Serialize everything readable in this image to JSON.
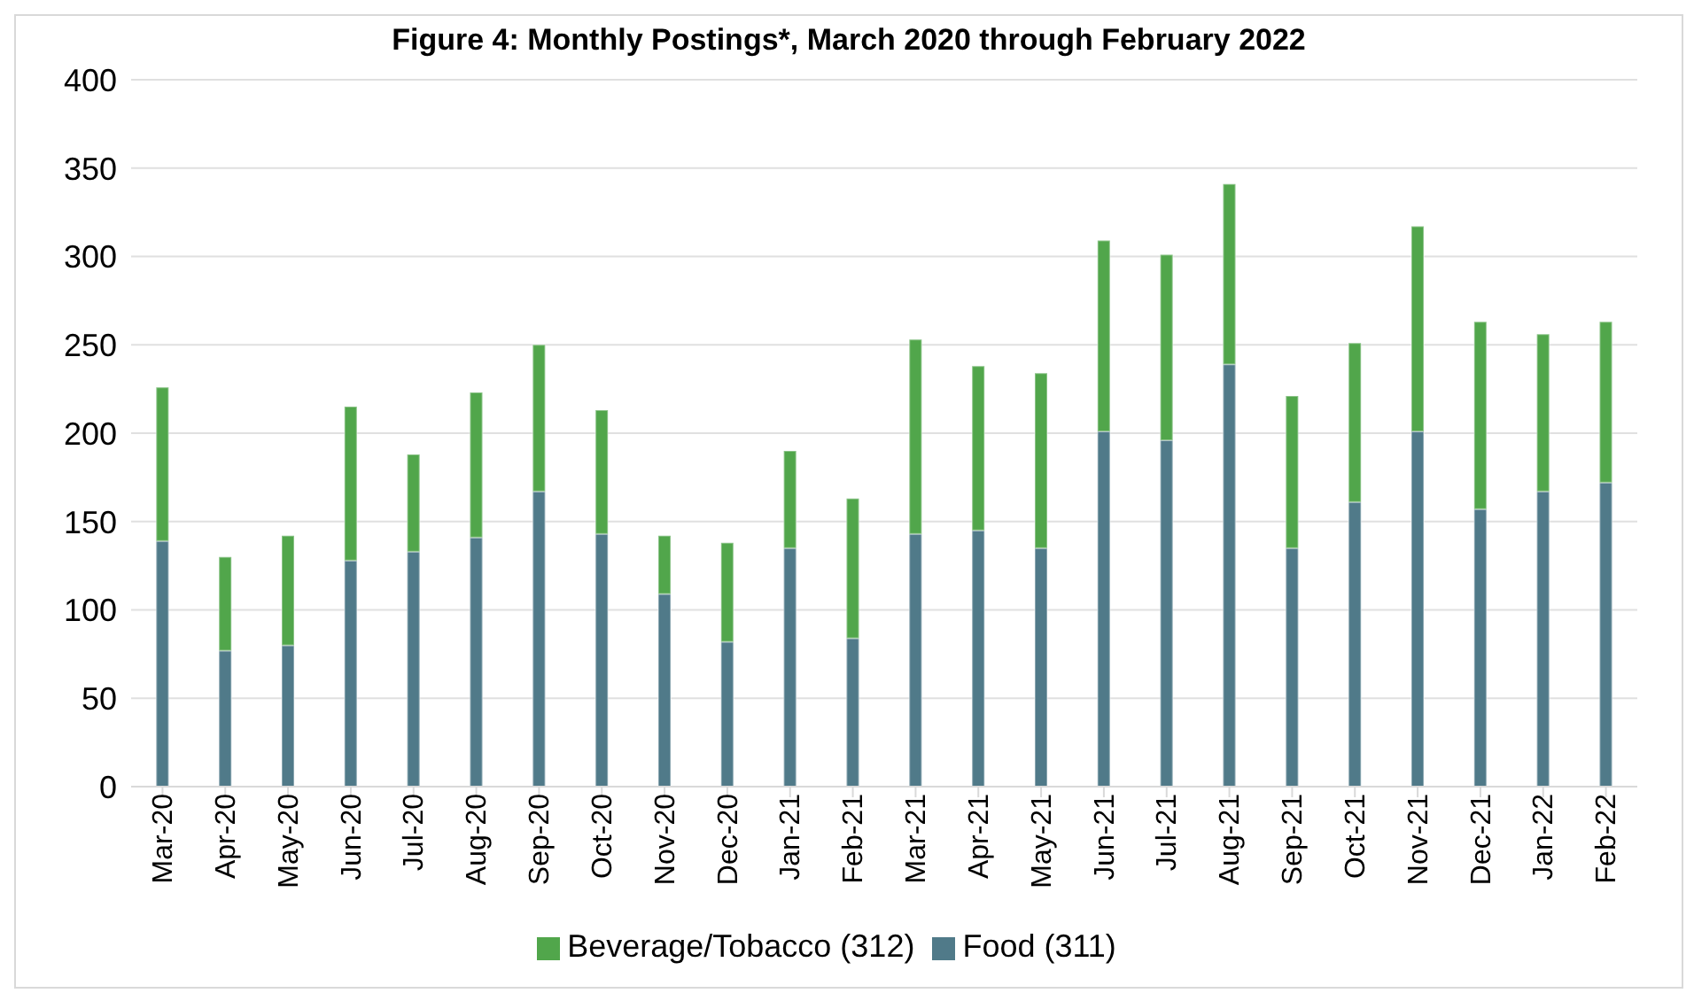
{
  "chart_data": {
    "type": "bar",
    "title": "Figure 4: Monthly Postings*, March 2020 through February 2022",
    "categories": [
      "Mar-20",
      "Apr-20",
      "May-20",
      "Jun-20",
      "Jul-20",
      "Aug-20",
      "Sep-20",
      "Oct-20",
      "Nov-20",
      "Dec-20",
      "Jan-21",
      "Feb-21",
      "Mar-21",
      "Apr-21",
      "May-21",
      "Jun-21",
      "Jul-21",
      "Aug-21",
      "Sep-21",
      "Oct-21",
      "Nov-21",
      "Dec-21",
      "Jan-22",
      "Feb-22"
    ],
    "stacked": true,
    "series": [
      {
        "name": "Food (311)",
        "color": "#507a89",
        "values": [
          139,
          77,
          80,
          128,
          133,
          141,
          167,
          143,
          109,
          82,
          135,
          84,
          143,
          145,
          135,
          201,
          196,
          239,
          135,
          161,
          201,
          157,
          167,
          172
        ]
      },
      {
        "name": "Beverage/Tobacco (312)",
        "color": "#51a64b",
        "values": [
          87,
          53,
          62,
          87,
          55,
          82,
          83,
          70,
          33,
          56,
          55,
          79,
          110,
          93,
          99,
          108,
          105,
          102,
          86,
          90,
          116,
          106,
          89,
          91
        ]
      }
    ],
    "ylim": [
      0,
      400
    ],
    "yticks": [
      0,
      50,
      100,
      150,
      200,
      250,
      300,
      350,
      400
    ],
    "grid": "y",
    "legend": "bottom"
  }
}
